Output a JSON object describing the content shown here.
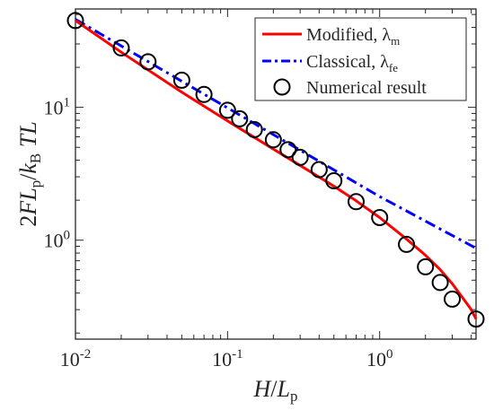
{
  "chart_data": {
    "type": "line",
    "xlabel": "H/L_p",
    "ylabel": "2FL_p/k_B TL",
    "x_scale": "log",
    "y_scale": "log",
    "xlim": [
      0.01,
      4.3
    ],
    "ylim": [
      0.18,
      55
    ],
    "x_ticks": [
      {
        "base": "10",
        "exp": "-2",
        "value": 0.01
      },
      {
        "base": "10",
        "exp": "-1",
        "value": 0.1
      },
      {
        "base": "10",
        "exp": "0",
        "value": 1
      }
    ],
    "y_ticks": [
      {
        "base": "10",
        "exp": "0",
        "value": 1
      },
      {
        "base": "10",
        "exp": "1",
        "value": 10
      }
    ],
    "grid": false,
    "legend_position": "top-right",
    "colors": {
      "modified": "#ff0000",
      "classical": "#0000ff",
      "markers": "#000000"
    },
    "series": [
      {
        "name": "Modified, λ_m",
        "legend_main": "Modified, λ",
        "legend_sub": "m",
        "style": "solid",
        "x": [
          0.01,
          0.02,
          0.05,
          0.1,
          0.2,
          0.3,
          0.5,
          0.7,
          1.0,
          1.5,
          2.0,
          2.5,
          3.0,
          3.5,
          4.0,
          4.3
        ],
        "values": [
          45,
          26,
          13,
          7.9,
          4.85,
          3.65,
          2.55,
          1.98,
          1.48,
          1.02,
          0.77,
          0.6,
          0.47,
          0.37,
          0.3,
          0.255
        ]
      },
      {
        "name": "Classical, λ_fe",
        "legend_main": "Classical, λ",
        "legend_sub": "fe",
        "style": "dash-dot",
        "x": [
          0.01,
          0.1,
          1.0,
          4.3
        ],
        "values": [
          46,
          9.9,
          2.13,
          0.87
        ]
      },
      {
        "name": "Numerical result",
        "legend_main": "Numerical result",
        "legend_sub": "",
        "style": "markers",
        "x": [
          0.01,
          0.02,
          0.03,
          0.05,
          0.07,
          0.1,
          0.12,
          0.15,
          0.2,
          0.25,
          0.3,
          0.4,
          0.5,
          0.7,
          1.0,
          1.5,
          2.0,
          2.5,
          3.0,
          4.3
        ],
        "values": [
          45,
          28,
          22,
          16,
          12.5,
          9.5,
          8.2,
          6.8,
          5.7,
          4.8,
          4.2,
          3.4,
          2.8,
          1.95,
          1.48,
          0.93,
          0.63,
          0.48,
          0.36,
          0.255
        ]
      }
    ]
  }
}
